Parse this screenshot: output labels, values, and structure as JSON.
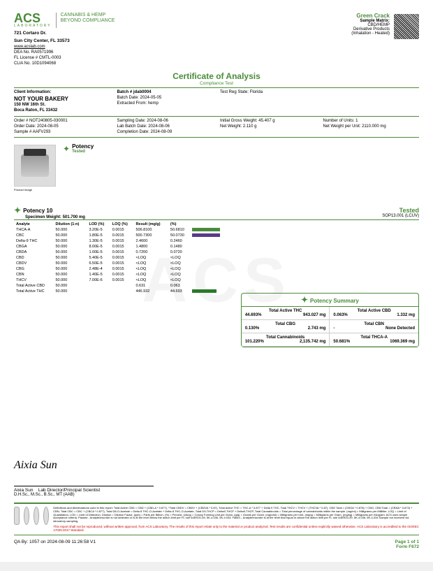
{
  "header": {
    "logo": "ACS",
    "logo_sub": "LABORATORY",
    "tagline1": "CANNABIS & HEMP",
    "tagline2": "BEYOND COMPLIANCE",
    "addr1": "721 Cortaro Dr.",
    "addr2": "Sun City Center, FL 33573",
    "url": "www.acslab.com",
    "dea": "DEA No. RA0571996",
    "fllic": "FL License # CMTL-0003",
    "clia": "CLIA No. 10D1094068",
    "product_name": "Green Crack",
    "matrix_lbl": "Sample Matrix:",
    "matrix": "CBD/HEMP",
    "derivative": "Derivative Products",
    "inhalation": "(Inhalation - Heated)"
  },
  "coa": {
    "title": "Certificate of Analysis",
    "sub": "Compliance Test"
  },
  "client": {
    "lbl": "Client Information:",
    "name": "NOT YOUR BAKERY",
    "addr1": "150 NW 16th St.",
    "addr2": "Boca Raton, FL 33432",
    "order": "Order # NOT240805-030001",
    "order_date": "Order Date: 2024-08-05",
    "sample": "Sample # AAFV293"
  },
  "batch": {
    "num": "Batch # jdab0004",
    "date": "Batch Date: 2024-05-05",
    "extracted": "Extracted From: hemp",
    "sampling": "Sampling Date: 2024-08-06",
    "lab_batch": "Lab Batch Date: 2024-08-06",
    "completion": "Completion Date: 2024-08-09"
  },
  "reg": {
    "state": "Test Reg State: Florida",
    "gross": "Initial Gross Weight: 45.407 g",
    "net": "Net Weight: 2.110 g",
    "units": "Number of Units: 1",
    "per_unit": "Net Weight per Unit: 2110.000 mg"
  },
  "potency_box": {
    "lbl": "Potency",
    "tested": "Tested"
  },
  "section": {
    "title": "Potency 10",
    "spec_wt": "Specimen Weight: 501.700 mg",
    "tested": "Tested",
    "sop": "SOP13.001 (LCUV)"
  },
  "table": {
    "headers": [
      "Analyte",
      "Dilution (1:n)",
      "LOD (%)",
      "LOQ (%)",
      "Result (mg/g)",
      "(%)"
    ],
    "rows": [
      {
        "a": "THCA-A",
        "d": "50.000",
        "lod": "3.20E-5",
        "loq": "0.0015",
        "r": "506.8100",
        "p": "50.6810",
        "bar": "#4a8b3a",
        "bw": 40
      },
      {
        "a": "CBC",
        "d": "50.000",
        "lod": "1.80E-5",
        "loq": "0.0015",
        "r": "500.7300",
        "p": "50.0730",
        "bar": "#5a3a8b",
        "bw": 40
      },
      {
        "a": "Delta-9 THC",
        "d": "50.000",
        "lod": "1.30E-5",
        "loq": "0.0015",
        "r": "2.4600",
        "p": "0.2460",
        "bar": "",
        "bw": 0
      },
      {
        "a": "CBGA",
        "d": "50.000",
        "lod": "8.00E-5",
        "loq": "0.0015",
        "r": "1.4800",
        "p": "0.1480",
        "bar": "",
        "bw": 0
      },
      {
        "a": "CBDA",
        "d": "50.000",
        "lod": "1.00E-5",
        "loq": "0.0015",
        "r": "0.7200",
        "p": "0.0720",
        "bar": "",
        "bw": 0
      },
      {
        "a": "CBD",
        "d": "50.000",
        "lod": "5.40E-5",
        "loq": "0.0015",
        "r": "<LOQ",
        "p": "<LOQ",
        "bar": "",
        "bw": 0
      },
      {
        "a": "CBDV",
        "d": "50.000",
        "lod": "6.50E-5",
        "loq": "0.0015",
        "r": "<LOQ",
        "p": "<LOQ",
        "bar": "",
        "bw": 0
      },
      {
        "a": "CBG",
        "d": "50.000",
        "lod": "2.48E-4",
        "loq": "0.0015",
        "r": "<LOQ",
        "p": "<LOQ",
        "bar": "",
        "bw": 0
      },
      {
        "a": "CBN",
        "d": "50.000",
        "lod": "1.40E-5",
        "loq": "0.0015",
        "r": "<LOQ",
        "p": "<LOQ",
        "bar": "",
        "bw": 0
      },
      {
        "a": "THCV",
        "d": "50.000",
        "lod": "7.00E-6",
        "loq": "0.0015",
        "r": "<LOQ",
        "p": "<LOQ",
        "bar": "",
        "bw": 0
      },
      {
        "a": "Total Active CBD",
        "d": "50.000",
        "lod": "",
        "loq": "",
        "r": "0.631",
        "p": "0.063",
        "bar": "",
        "bw": 0
      },
      {
        "a": "Total Active THC",
        "d": "50.000",
        "lod": "",
        "loq": "",
        "r": "446.932",
        "p": "44.693",
        "bar": "#2a7a2a",
        "bw": 35
      }
    ]
  },
  "summary": {
    "title": "Potency Summary",
    "cells": [
      {
        "lbl": "Total Active THC",
        "v1": "44.693%",
        "v2": "943.027 mg"
      },
      {
        "lbl": "Total Active CBD",
        "v1": "0.063%",
        "v2": "1.332 mg"
      },
      {
        "lbl": "Total CBG",
        "v1": "0.130%",
        "v2": "2.743 mg"
      },
      {
        "lbl": "Total CBN",
        "v1": "-",
        "v2": "None Detected"
      },
      {
        "lbl": "Total Cannabinoids",
        "v1": "101.220%",
        "v2": "2,135.742 mg"
      },
      {
        "lbl": "Total THCA-A",
        "v1": "50.681%",
        "v2": "1069.369 mg"
      }
    ]
  },
  "signature": {
    "name": "Aixia Sun",
    "title": "Lab Director/Principal Scientist",
    "cred": "D.H.Sc., M.Sc., B.Sc., MT (AAB)"
  },
  "defs_text": "Definitions and Abbreviations used in this report: Total Active CBD = CBD + (CBD-A * 0.877), *Total CBDV = CBDV + (CBDVA * 0.87), Total Active THC = THC-A * 0.877 + Delta 9 THC, Total THCV = THCV + (THCVA * 0.87), CBG Total = (CBGA * 0.878) + CBG, CBN Total = (CBNA * 0.873) + CBN, Total CBC = CBC + (CBCA * 0.877), Total D8-O-Acetate = Delta 8 THC-O-Acetate + Delta 8 THC-O-Acetate, Total D9-THCP = Delta9-THCP + Delta9-THCP, Total Cannabinoids = Total percentage of cannabinoids within the sample. (mg/ml) = Milligrams per Milliliter, LOQ = Limit of Quantitation, LOD = Limit of Detection, Dilution = Dilution Factor, (ppb) = Parts per Billion, (%) = Percent, (cfu/g) = Colony Forming Unit per Gram, (g/g) = Grams per Gram, (mg/Unit) = Milligrams per Unit, (mg/g) = Milligrams per Gram, (mg/kg) = Milligrams per Kilogram. ACS uses simple acceptance criteria. Passed - Analyte/microbe is not detected or is at the level below the action limit per FL rule 64ER20-39, 5K-4.036, 5K-4.034. Failed – Analyte/microbe is at the level that equal or above the action limit per FL rule 64ER20-39, 5K-4.036, 5K-4.034 Sample not received via laboratory sampling.",
  "red_text": "This report shall not be reproduced, without written approval, from ACS Laboratory. The results of this report relate only to the material or product analyzed. Test results are confidential unless explicitly waived otherwise. ACS Laboratory is accredited to the ISO/IEC 17025:2017 Standard.",
  "qa": "QA By: 1057 on 2024-08-09 11:26:58 V1",
  "page": {
    "num": "Page 1 of 1",
    "form": "Form F672"
  }
}
